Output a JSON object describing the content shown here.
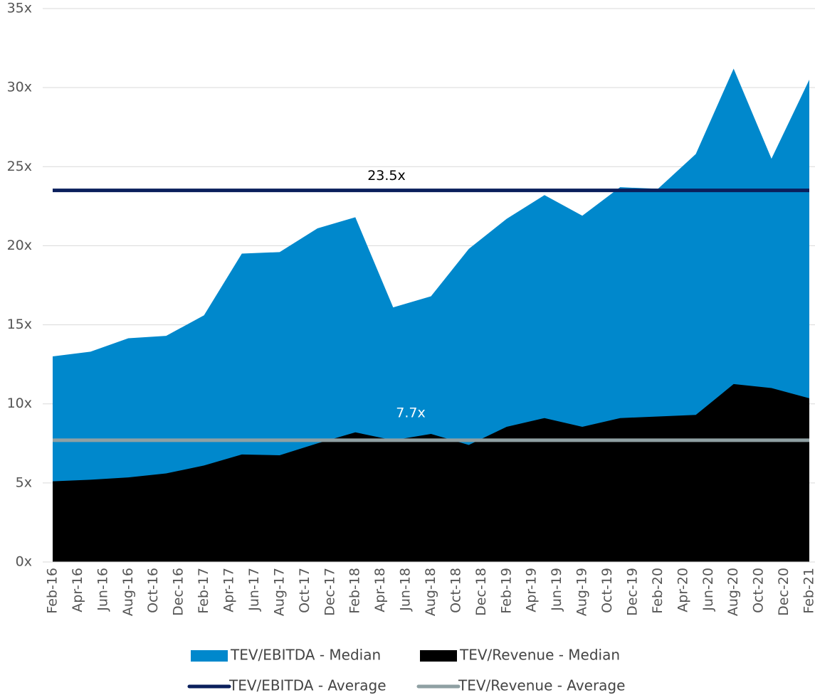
{
  "chart_data": {
    "type": "area",
    "xticks": [
      "Feb-16",
      "Apr-16",
      "Jun-16",
      "Aug-16",
      "Oct-16",
      "Dec-16",
      "Feb-17",
      "Apr-17",
      "Jun-17",
      "Aug-17",
      "Oct-17",
      "Dec-17",
      "Feb-18",
      "Apr-18",
      "Jun-18",
      "Aug-18",
      "Oct-18",
      "Dec-18",
      "Feb-19",
      "Apr-19",
      "Jun-19",
      "Aug-19",
      "Oct-19",
      "Dec-19",
      "Feb-20",
      "Apr-20",
      "Jun-20",
      "Aug-20",
      "Oct-20",
      "Dec-20",
      "Feb-21"
    ],
    "ylim": [
      0,
      35
    ],
    "yticks": [
      {
        "value": 0,
        "label": "0x"
      },
      {
        "value": 5,
        "label": "5x"
      },
      {
        "value": 10,
        "label": "10x"
      },
      {
        "value": 15,
        "label": "15x"
      },
      {
        "value": 20,
        "label": "20x"
      },
      {
        "value": 25,
        "label": "25x"
      },
      {
        "value": 30,
        "label": "30x"
      },
      {
        "value": 35,
        "label": "35x"
      }
    ],
    "grid": true,
    "series": [
      {
        "name": "TEV/EBITDA - Median",
        "color": "#0088cc",
        "values": [
          13.0,
          13.3,
          14.15,
          14.3,
          15.6,
          19.5,
          19.6,
          21.1,
          21.8,
          16.1,
          16.8,
          19.8,
          21.7,
          23.2,
          21.9,
          23.7,
          23.6,
          25.8,
          31.2,
          25.5,
          30.5
        ]
      },
      {
        "name": "TEV/Revenue - Median",
        "color": "#000000",
        "values": [
          5.1,
          5.2,
          5.35,
          5.6,
          6.1,
          6.8,
          6.75,
          7.5,
          8.2,
          7.7,
          8.1,
          7.4,
          8.55,
          9.1,
          8.55,
          9.1,
          9.2,
          9.3,
          11.25,
          11.0,
          10.35
        ]
      }
    ],
    "averages": [
      {
        "name": "TEV/EBITDA - Average",
        "color": "#0a1f5c",
        "value": 23.5,
        "value_label": "23.5x",
        "label_color": "#000000"
      },
      {
        "name": "TEV/Revenue - Average",
        "color": "#8fa0a3",
        "value": 7.7,
        "value_label": "7.7x",
        "label_color": "#ffffff"
      }
    ]
  }
}
